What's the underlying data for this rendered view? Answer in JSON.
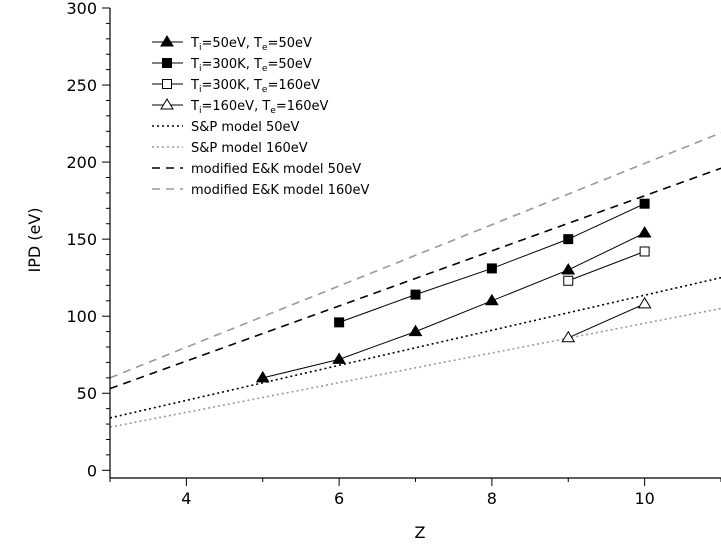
{
  "chart_data": {
    "type": "line",
    "xlabel": "Z",
    "ylabel": "IPD (eV)",
    "xlim": [
      3,
      11
    ],
    "ylim": [
      -5,
      300
    ],
    "xticks": [
      4,
      6,
      8,
      10
    ],
    "yticks": [
      0,
      50,
      100,
      150,
      200,
      250,
      300
    ],
    "grid": false,
    "legend_position": "top-left",
    "series": [
      {
        "name": "Ti=50eV, Te=50eV",
        "label_parts": [
          "T",
          "i",
          "=50eV, T",
          "e",
          "=50eV"
        ],
        "marker": "triangle-filled",
        "line": "solid",
        "color": "#000000",
        "x": [
          5,
          6,
          7,
          8,
          9,
          10
        ],
        "y": [
          60,
          72,
          90,
          110,
          130,
          154
        ]
      },
      {
        "name": "Ti=300K, Te=50eV",
        "label_parts": [
          "T",
          "i",
          "=300K, T",
          "e",
          "=50eV"
        ],
        "marker": "square-filled",
        "line": "solid",
        "color": "#000000",
        "x": [
          6,
          7,
          8,
          9,
          10
        ],
        "y": [
          96,
          114,
          131,
          150,
          173
        ]
      },
      {
        "name": "Ti=300K, Te=160eV",
        "label_parts": [
          "T",
          "i",
          "=300K, T",
          "e",
          "=160eV"
        ],
        "marker": "square-open",
        "line": "solid",
        "color": "#000000",
        "x": [
          9,
          10
        ],
        "y": [
          123,
          142
        ]
      },
      {
        "name": "Ti=160eV, Te=160eV",
        "label_parts": [
          "T",
          "i",
          "=160eV, T",
          "e",
          "=160eV"
        ],
        "marker": "triangle-open",
        "line": "solid",
        "color": "#000000",
        "x": [
          9,
          10
        ],
        "y": [
          86,
          108
        ]
      },
      {
        "name": "S&P model 50eV",
        "label_parts": [
          "S&P model 50eV"
        ],
        "marker": "none",
        "line": "dotted",
        "color": "#000000",
        "x": [
          3,
          11
        ],
        "y": [
          34,
          125
        ]
      },
      {
        "name": "S&P model 160eV",
        "label_parts": [
          "S&P model 160eV"
        ],
        "marker": "none",
        "line": "dotted",
        "color": "#9a9a9a",
        "x": [
          3,
          11
        ],
        "y": [
          28,
          105
        ]
      },
      {
        "name": "modified E&K model 50eV",
        "label_parts": [
          "modified E&K model 50eV"
        ],
        "marker": "none",
        "line": "dashed",
        "color": "#000000",
        "x": [
          3,
          11
        ],
        "y": [
          53,
          196
        ]
      },
      {
        "name": "modified E&K model 160eV",
        "label_parts": [
          "modified E&K model 160eV"
        ],
        "marker": "none",
        "line": "dashed",
        "color": "#9a9a9a",
        "x": [
          3,
          11
        ],
        "y": [
          60,
          219
        ]
      }
    ]
  }
}
